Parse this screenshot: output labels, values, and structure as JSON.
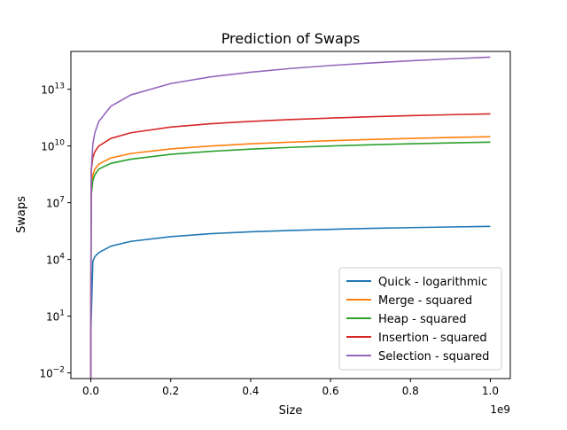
{
  "chart_data": {
    "type": "line",
    "title": "Prediction of Swaps",
    "xlabel": "Size",
    "ylabel": "Swaps",
    "x_offset_label": "1e9",
    "yscale": "log",
    "xlim": [
      -50000000,
      1050000000
    ],
    "ylim": [
      0.005,
      1000000000000000
    ],
    "xticks": [
      0,
      200000000,
      400000000,
      600000000,
      800000000,
      1000000000
    ],
    "xtick_labels": [
      "0.0",
      "0.2",
      "0.4",
      "0.6",
      "0.8",
      "1.0"
    ],
    "yticks": [
      {
        "value": 0.01,
        "base": "10",
        "exp": "−2"
      },
      {
        "value": 10,
        "base": "10",
        "exp": "1"
      },
      {
        "value": 10000,
        "base": "10",
        "exp": "4"
      },
      {
        "value": 10000000,
        "base": "10",
        "exp": "7"
      },
      {
        "value": 10000000000,
        "base": "10",
        "exp": "10"
      },
      {
        "value": 10000000000000,
        "base": "10",
        "exp": "13"
      }
    ],
    "grid": false,
    "legend_position": "lower-right",
    "series": [
      {
        "name": "Quick - logarithmic",
        "color": "#1f77b4",
        "x": [
          0,
          1,
          5000000,
          10000000,
          20000000,
          50000000,
          100000000,
          200000000,
          300000000,
          400000000,
          500000000,
          600000000,
          700000000,
          800000000,
          900000000,
          1000000000
        ],
        "y": [
          0.003,
          1.5,
          8000,
          14000,
          23000,
          50000,
          90000,
          160000,
          230000,
          290000,
          340000,
          390000,
          440000,
          480000,
          520000,
          560000
        ]
      },
      {
        "name": "Merge - squared",
        "color": "#ff7f0e",
        "x": [
          0,
          1,
          1000000,
          5000000,
          10000000,
          20000000,
          50000000,
          100000000,
          200000000,
          300000000,
          400000000,
          500000000,
          600000000,
          700000000,
          800000000,
          900000000,
          1000000000
        ],
        "y": [
          0.003,
          3,
          50000000,
          300000000,
          600000000,
          1100000000,
          2300000000,
          4000000000,
          7000000000,
          10000000000,
          13000000000,
          16000000000,
          19000000000,
          22000000000,
          25000000000,
          28000000000,
          31000000000
        ]
      },
      {
        "name": "Heap - squared",
        "color": "#2ca02c",
        "x": [
          0,
          1,
          1000000,
          5000000,
          10000000,
          20000000,
          50000000,
          100000000,
          200000000,
          300000000,
          400000000,
          500000000,
          600000000,
          700000000,
          800000000,
          900000000,
          1000000000
        ],
        "y": [
          0.003,
          2,
          25000000,
          150000000,
          300000000,
          600000000,
          1200000000,
          2000000000,
          3600000000,
          5200000000,
          6800000000,
          8400000000,
          10000000000,
          11500000000,
          13000000000,
          14500000000,
          16000000000
        ]
      },
      {
        "name": "Insertion - squared",
        "color": "#d62728",
        "x": [
          0,
          1,
          1000000,
          5000000,
          10000000,
          20000000,
          50000000,
          100000000,
          200000000,
          300000000,
          400000000,
          500000000,
          600000000,
          700000000,
          800000000,
          900000000,
          1000000000
        ],
        "y": [
          0.003,
          3,
          500000000,
          2500000000,
          5000000000,
          10000000000,
          25000000000,
          50000000000,
          100000000000,
          150000000000,
          200000000000,
          250000000000,
          300000000000,
          350000000000,
          400000000000,
          450000000000,
          500000000000
        ]
      },
      {
        "name": "Selection - squared",
        "color": "#9467bd",
        "x": [
          0,
          1,
          1000000,
          5000000,
          10000000,
          20000000,
          50000000,
          100000000,
          200000000,
          300000000,
          400000000,
          500000000,
          600000000,
          700000000,
          800000000,
          900000000,
          1000000000
        ],
        "y": [
          0.003,
          3,
          500000000,
          12500000000,
          50000000000,
          200000000000,
          1250000000000,
          5000000000000,
          20000000000000,
          45000000000000,
          80000000000000,
          125000000000000,
          180000000000000,
          245000000000000,
          320000000000000,
          405000000000000,
          500000000000000
        ]
      }
    ]
  }
}
